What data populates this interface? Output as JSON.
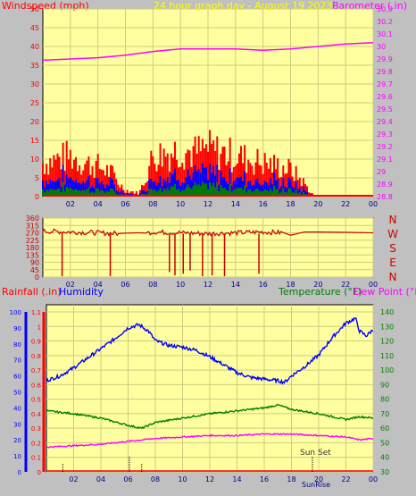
{
  "colors": {
    "background": "#c0c0c0",
    "plot_bg": "#ffffa0",
    "grid": "#cccc80",
    "wind_gust": "#ff0000",
    "wind_avg": "#0000ff",
    "wind_low": "#008000",
    "barometer": "#ff00ff",
    "direction": "#cc0000",
    "rainfall": "#ff0000",
    "humidity": "#0000ff",
    "temperature": "#008000",
    "dewpoint": "#ff00ff",
    "title": "#ffff00",
    "axis_text": "#000080"
  },
  "header": {
    "windspeed_label": "Windspeed (mph)",
    "title": "24 hour graph day - August 19 2023",
    "barometer_label": "Barometer (.in)"
  },
  "labels": {
    "rainfall": "Rainfall (.in)",
    "humidity": "Humidity",
    "temperature": "Temperature (°F)",
    "dewpoint": "Dew Point (°F)",
    "sunset": "Sun Set",
    "sunrise": "SunRise",
    "compass": [
      "N",
      "W",
      "S",
      "E",
      "N"
    ]
  },
  "chart_data": [
    {
      "type": "bar",
      "panel": "wind",
      "xlabel": "",
      "x_ticks": [
        "02",
        "04",
        "06",
        "08",
        "10",
        "12",
        "14",
        "16",
        "18",
        "20",
        "22",
        "00"
      ],
      "y_left": {
        "label": "Windspeed (mph)",
        "ticks": [
          0,
          5,
          10,
          15,
          20,
          25,
          30,
          35,
          40,
          45,
          50
        ],
        "lim": [
          0,
          50
        ]
      },
      "y_right": {
        "label": "Barometer (.in)",
        "ticks": [
          "28.8",
          "28.9",
          "29",
          "29.1",
          "29.2",
          "29.3",
          "29.4",
          "29.5",
          "29.6",
          "29.7",
          "29.8",
          "29.9",
          "30",
          "30.1",
          "30.2",
          "30.3"
        ],
        "lim": [
          28.8,
          30.3
        ]
      },
      "series": [
        {
          "name": "Windspeed (mph)",
          "x": [
            0,
            1,
            2,
            3,
            4,
            5,
            5.5,
            6,
            7,
            7.5,
            8,
            9,
            10,
            11,
            12,
            13,
            14,
            15,
            16,
            17,
            18,
            18.5,
            19,
            19.5,
            20,
            22,
            24
          ],
          "values": [
            10,
            11,
            12,
            10,
            9,
            7,
            4,
            2,
            1,
            6,
            12,
            13,
            14,
            13,
            14,
            13,
            12,
            11,
            10,
            9,
            8,
            6,
            4,
            1,
            0,
            0,
            0
          ]
        },
        {
          "name": "Barometer (.in)",
          "x": [
            0,
            2,
            4,
            6,
            8,
            10,
            12,
            14,
            16,
            18,
            20,
            22,
            24
          ],
          "values": [
            29.89,
            29.9,
            29.91,
            29.93,
            29.96,
            29.98,
            29.98,
            29.98,
            29.97,
            29.98,
            30.0,
            30.02,
            30.03
          ]
        }
      ]
    },
    {
      "type": "line",
      "panel": "direction",
      "x_ticks": [
        "02",
        "04",
        "06",
        "08",
        "10",
        "12",
        "14",
        "16",
        "18",
        "20",
        "22",
        "00"
      ],
      "y_left": {
        "ticks": [
          0,
          45,
          90,
          135,
          180,
          225,
          270,
          315,
          360
        ],
        "lim": [
          0,
          360
        ]
      },
      "series": [
        {
          "name": "Wind Direction",
          "x": [
            0,
            2,
            4,
            5.5,
            6,
            7,
            7.5,
            8,
            10,
            12,
            14,
            16,
            17.5,
            18,
            19,
            20,
            22,
            24
          ],
          "values": [
            280,
            275,
            270,
            265,
            268,
            270,
            268,
            275,
            270,
            265,
            270,
            275,
            270,
            255,
            275,
            275,
            273,
            270
          ]
        }
      ]
    },
    {
      "type": "line",
      "panel": "temperature",
      "x_ticks": [
        "02",
        "04",
        "06",
        "08",
        "10",
        "12",
        "14",
        "16",
        "18",
        "20",
        "22",
        "00"
      ],
      "y_left": {
        "label": "Humidity",
        "ticks": [
          0,
          10,
          20,
          30,
          40,
          50,
          60,
          70,
          80,
          90,
          100
        ],
        "lim": [
          0,
          100
        ]
      },
      "y_rain": {
        "label": "Rainfall (.in)",
        "ticks": [
          "0",
          "0.1",
          "0.2",
          "0.3",
          "0.4",
          "0.5",
          "0.6",
          "0.7",
          "0.8",
          "0.9",
          "1",
          "1.1"
        ],
        "lim": [
          0,
          1.1
        ]
      },
      "y_right": {
        "label": "Temperature (°F)",
        "ticks": [
          30,
          40,
          50,
          60,
          70,
          80,
          90,
          100,
          110,
          120,
          130,
          140
        ],
        "lim": [
          30,
          145
        ]
      },
      "series": [
        {
          "name": "Humidity",
          "axis": "left",
          "x": [
            0,
            1,
            2,
            3,
            4,
            5,
            6,
            6.8,
            7.5,
            8,
            9,
            10,
            11,
            12,
            13,
            14,
            15,
            16,
            17,
            17.5,
            18,
            19,
            20,
            21,
            22,
            22.7,
            23,
            23.5,
            24
          ],
          "values": [
            57,
            60,
            65,
            71,
            77,
            83,
            90,
            92,
            88,
            82,
            79,
            78,
            76,
            72,
            67,
            62,
            59,
            58,
            57,
            56,
            60,
            66,
            73,
            84,
            93,
            96,
            88,
            85,
            89
          ]
        },
        {
          "name": "Temperature (°F)",
          "axis": "right",
          "x": [
            0,
            2,
            4,
            6,
            7,
            8,
            10,
            12,
            14,
            16,
            17,
            18,
            20,
            21,
            22,
            23,
            24
          ],
          "values": [
            72,
            70,
            67,
            62,
            60,
            64,
            67,
            70,
            72,
            74,
            76,
            73,
            70,
            68,
            66,
            68,
            67
          ]
        },
        {
          "name": "Dew Point (°F)",
          "axis": "right",
          "x": [
            0,
            2,
            4,
            6,
            8,
            10,
            12,
            14,
            16,
            18,
            20,
            22,
            23,
            24
          ],
          "values": [
            47,
            48,
            49,
            51,
            53,
            54,
            55,
            55,
            56,
            56,
            55,
            54,
            52,
            53
          ]
        },
        {
          "name": "Rainfall (.in)",
          "axis": "rain",
          "x": [
            0,
            24
          ],
          "values": [
            0,
            0
          ]
        }
      ],
      "annotations": [
        {
          "text": "Sun Set",
          "x": 20
        },
        {
          "text": "SunRise",
          "x": 20
        }
      ],
      "ticks_marks": [
        {
          "x": 1.2
        },
        {
          "x": 7
        }
      ]
    }
  ]
}
